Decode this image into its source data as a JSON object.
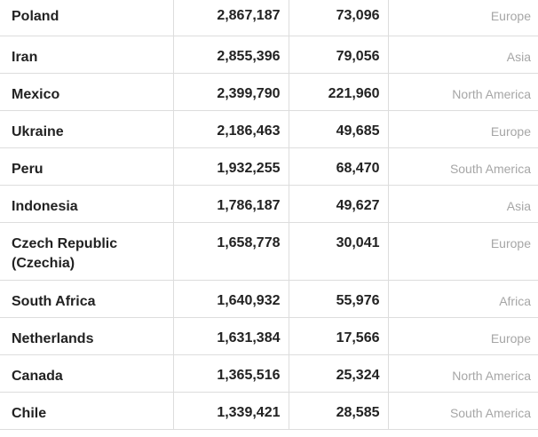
{
  "table": {
    "rows": [
      {
        "country": "Poland",
        "cases": "2,867,187",
        "deaths": "73,096",
        "region": "Europe"
      },
      {
        "country": "Iran",
        "cases": "2,855,396",
        "deaths": "79,056",
        "region": "Asia"
      },
      {
        "country": "Mexico",
        "cases": "2,399,790",
        "deaths": "221,960",
        "region": "North America"
      },
      {
        "country": "Ukraine",
        "cases": "2,186,463",
        "deaths": "49,685",
        "region": "Europe"
      },
      {
        "country": "Peru",
        "cases": "1,932,255",
        "deaths": "68,470",
        "region": "South America"
      },
      {
        "country": "Indonesia",
        "cases": "1,786,187",
        "deaths": "49,627",
        "region": "Asia"
      },
      {
        "country": "Czech Republic (Czechia)",
        "cases": "1,658,778",
        "deaths": "30,041",
        "region": "Europe"
      },
      {
        "country": "South Africa",
        "cases": "1,640,932",
        "deaths": "55,976",
        "region": "Africa"
      },
      {
        "country": "Netherlands",
        "cases": "1,631,384",
        "deaths": "17,566",
        "region": "Europe"
      },
      {
        "country": "Canada",
        "cases": "1,365,516",
        "deaths": "25,324",
        "region": "North America"
      },
      {
        "country": "Chile",
        "cases": "1,339,421",
        "deaths": "28,585",
        "region": "South America"
      }
    ]
  }
}
